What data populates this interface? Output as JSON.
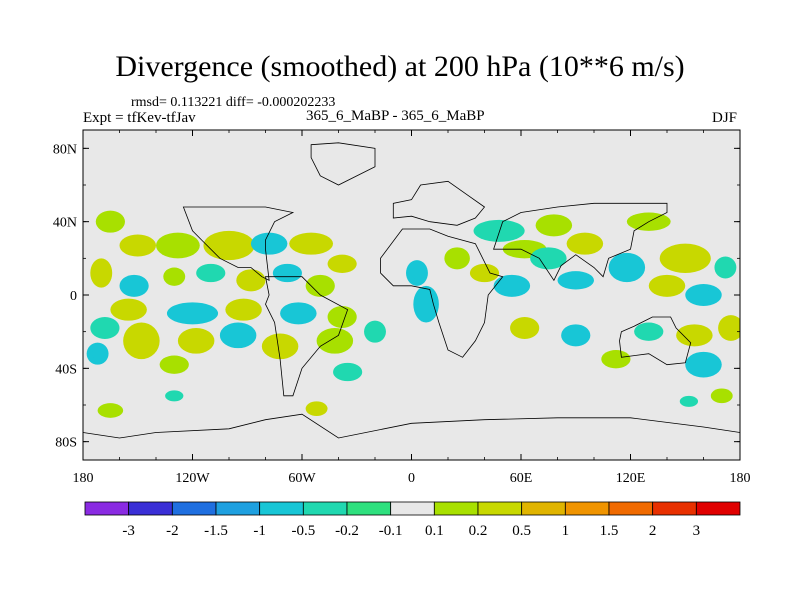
{
  "chart_data": {
    "type": "heatmap",
    "title": "Divergence (smoothed) at 200 hPa (10**6 m/s)",
    "stats": "rmsd= 0.113221 diff= -0.000202233",
    "experiment": "Expt = tfKev-tfJav",
    "cases": "365_6_MaBP - 365_6_MaBP",
    "season": "DJF",
    "x_tick_labels": [
      "180",
      "120W",
      "60W",
      "0",
      "60E",
      "120E",
      "180"
    ],
    "x_ticks": [
      -180,
      -120,
      -60,
      0,
      60,
      120,
      180
    ],
    "y_tick_labels": [
      "80N",
      "40N",
      "0",
      "40S",
      "80S"
    ],
    "y_ticks": [
      80,
      40,
      0,
      -40,
      -80
    ],
    "xlim": [
      -180,
      180
    ],
    "ylim": [
      -90,
      90
    ],
    "colorbar": {
      "labels": [
        "-3",
        "-2",
        "-1.5",
        "-1",
        "-0.5",
        "-0.2",
        "-0.1",
        "0.1",
        "0.2",
        "0.5",
        "1",
        "1.5",
        "2",
        "3"
      ],
      "colors": [
        "#8a2be2",
        "#3a2fd6",
        "#1f6fe0",
        "#1ea0e0",
        "#18c6d6",
        "#20d8b0",
        "#2ee07e",
        "#e8e8e8",
        "#a8e000",
        "#c8d800",
        "#e0b400",
        "#f09400",
        "#f06a00",
        "#e83000",
        "#e00000"
      ]
    },
    "features": [
      {
        "lon": -165,
        "lat": 40,
        "rlon": 8,
        "rlat": 6,
        "value": 0.3
      },
      {
        "lon": -150,
        "lat": 27,
        "rlon": 10,
        "rlat": 6,
        "value": 0.5
      },
      {
        "lon": -128,
        "lat": 27,
        "rlon": 12,
        "rlat": 7,
        "value": 0.4
      },
      {
        "lon": -100,
        "lat": 27,
        "rlon": 14,
        "rlat": 8,
        "value": 0.7
      },
      {
        "lon": -78,
        "lat": 28,
        "rlon": 10,
        "rlat": 6,
        "value": -0.6
      },
      {
        "lon": -55,
        "lat": 28,
        "rlon": 12,
        "rlat": 6,
        "value": 0.6
      },
      {
        "lon": -38,
        "lat": 17,
        "rlon": 8,
        "rlat": 5,
        "value": 0.5
      },
      {
        "lon": -170,
        "lat": 12,
        "rlon": 6,
        "rlat": 8,
        "value": 0.7
      },
      {
        "lon": -152,
        "lat": 5,
        "rlon": 8,
        "rlat": 6,
        "value": -0.5
      },
      {
        "lon": -130,
        "lat": 10,
        "rlon": 6,
        "rlat": 5,
        "value": 0.4
      },
      {
        "lon": -110,
        "lat": 12,
        "rlon": 8,
        "rlat": 5,
        "value": -0.4
      },
      {
        "lon": -88,
        "lat": 8,
        "rlon": 8,
        "rlat": 6,
        "value": 0.5
      },
      {
        "lon": -68,
        "lat": 12,
        "rlon": 8,
        "rlat": 5,
        "value": -0.5
      },
      {
        "lon": -50,
        "lat": 5,
        "rlon": 8,
        "rlat": 6,
        "value": 0.4
      },
      {
        "lon": -155,
        "lat": -8,
        "rlon": 10,
        "rlat": 6,
        "value": 0.6
      },
      {
        "lon": -120,
        "lat": -10,
        "rlon": 14,
        "rlat": 6,
        "value": -0.7
      },
      {
        "lon": -92,
        "lat": -8,
        "rlon": 10,
        "rlat": 6,
        "value": 0.8
      },
      {
        "lon": -62,
        "lat": -10,
        "rlon": 10,
        "rlat": 6,
        "value": -0.6
      },
      {
        "lon": -38,
        "lat": -12,
        "rlon": 8,
        "rlat": 6,
        "value": 0.4
      },
      {
        "lon": -168,
        "lat": -18,
        "rlon": 8,
        "rlat": 6,
        "value": -0.4
      },
      {
        "lon": -148,
        "lat": -25,
        "rlon": 10,
        "rlat": 10,
        "value": 0.8
      },
      {
        "lon": -118,
        "lat": -25,
        "rlon": 10,
        "rlat": 7,
        "value": 0.5
      },
      {
        "lon": -95,
        "lat": -22,
        "rlon": 10,
        "rlat": 7,
        "value": -0.6
      },
      {
        "lon": -72,
        "lat": -28,
        "rlon": 10,
        "rlat": 7,
        "value": 0.6
      },
      {
        "lon": -42,
        "lat": -25,
        "rlon": 10,
        "rlat": 7,
        "value": 0.4
      },
      {
        "lon": -20,
        "lat": -20,
        "rlon": 6,
        "rlat": 6,
        "value": -0.4
      },
      {
        "lon": -172,
        "lat": -32,
        "rlon": 6,
        "rlat": 6,
        "value": -0.5
      },
      {
        "lon": -130,
        "lat": -38,
        "rlon": 8,
        "rlat": 5,
        "value": 0.4
      },
      {
        "lon": -35,
        "lat": -42,
        "rlon": 8,
        "rlat": 5,
        "value": -0.4
      },
      {
        "lon": -52,
        "lat": -62,
        "rlon": 6,
        "rlat": 4,
        "value": 0.5
      },
      {
        "lon": -165,
        "lat": -63,
        "rlon": 7,
        "rlat": 4,
        "value": 0.3
      },
      {
        "lon": -130,
        "lat": -55,
        "rlon": 5,
        "rlat": 3,
        "value": -0.3
      },
      {
        "lon": 3,
        "lat": 12,
        "rlon": 6,
        "rlat": 7,
        "value": -0.6
      },
      {
        "lon": 8,
        "lat": -5,
        "rlon": 7,
        "rlat": 10,
        "value": -0.9
      },
      {
        "lon": 25,
        "lat": 20,
        "rlon": 7,
        "rlat": 6,
        "value": 0.4
      },
      {
        "lon": 40,
        "lat": 12,
        "rlon": 8,
        "rlat": 5,
        "value": 0.6
      },
      {
        "lon": 55,
        "lat": 5,
        "rlon": 10,
        "rlat": 6,
        "value": -0.7
      },
      {
        "lon": 48,
        "lat": 35,
        "rlon": 14,
        "rlat": 6,
        "value": -0.4
      },
      {
        "lon": 62,
        "lat": 25,
        "rlon": 12,
        "rlat": 5,
        "value": 0.4
      },
      {
        "lon": 75,
        "lat": 20,
        "rlon": 10,
        "rlat": 6,
        "value": -0.4
      },
      {
        "lon": 78,
        "lat": 38,
        "rlon": 10,
        "rlat": 6,
        "value": 0.3
      },
      {
        "lon": 95,
        "lat": 28,
        "rlon": 10,
        "rlat": 6,
        "value": 0.5
      },
      {
        "lon": 90,
        "lat": 8,
        "rlon": 10,
        "rlat": 5,
        "value": -0.5
      },
      {
        "lon": 118,
        "lat": 15,
        "rlon": 10,
        "rlat": 8,
        "value": -0.6
      },
      {
        "lon": 130,
        "lat": 40,
        "rlon": 12,
        "rlat": 5,
        "value": 0.3
      },
      {
        "lon": 150,
        "lat": 20,
        "rlon": 14,
        "rlat": 8,
        "value": 0.7
      },
      {
        "lon": 160,
        "lat": 0,
        "rlon": 10,
        "rlat": 6,
        "value": -0.5
      },
      {
        "lon": 140,
        "lat": 5,
        "rlon": 10,
        "rlat": 6,
        "value": 0.5
      },
      {
        "lon": 172,
        "lat": 15,
        "rlon": 6,
        "rlat": 6,
        "value": -0.4
      },
      {
        "lon": 175,
        "lat": -18,
        "rlon": 7,
        "rlat": 7,
        "value": 0.5
      },
      {
        "lon": 155,
        "lat": -22,
        "rlon": 10,
        "rlat": 6,
        "value": 0.6
      },
      {
        "lon": 130,
        "lat": -20,
        "rlon": 8,
        "rlat": 5,
        "value": -0.4
      },
      {
        "lon": 62,
        "lat": -18,
        "rlon": 8,
        "rlat": 6,
        "value": 0.5
      },
      {
        "lon": 90,
        "lat": -22,
        "rlon": 8,
        "rlat": 6,
        "value": -0.5
      },
      {
        "lon": 112,
        "lat": -35,
        "rlon": 8,
        "rlat": 5,
        "value": 0.3
      },
      {
        "lon": 160,
        "lat": -38,
        "rlon": 10,
        "rlat": 7,
        "value": -0.5
      },
      {
        "lon": 170,
        "lat": -55,
        "rlon": 6,
        "rlat": 4,
        "value": 0.3
      },
      {
        "lon": 152,
        "lat": -58,
        "rlon": 5,
        "rlat": 3,
        "value": -0.3
      }
    ]
  }
}
